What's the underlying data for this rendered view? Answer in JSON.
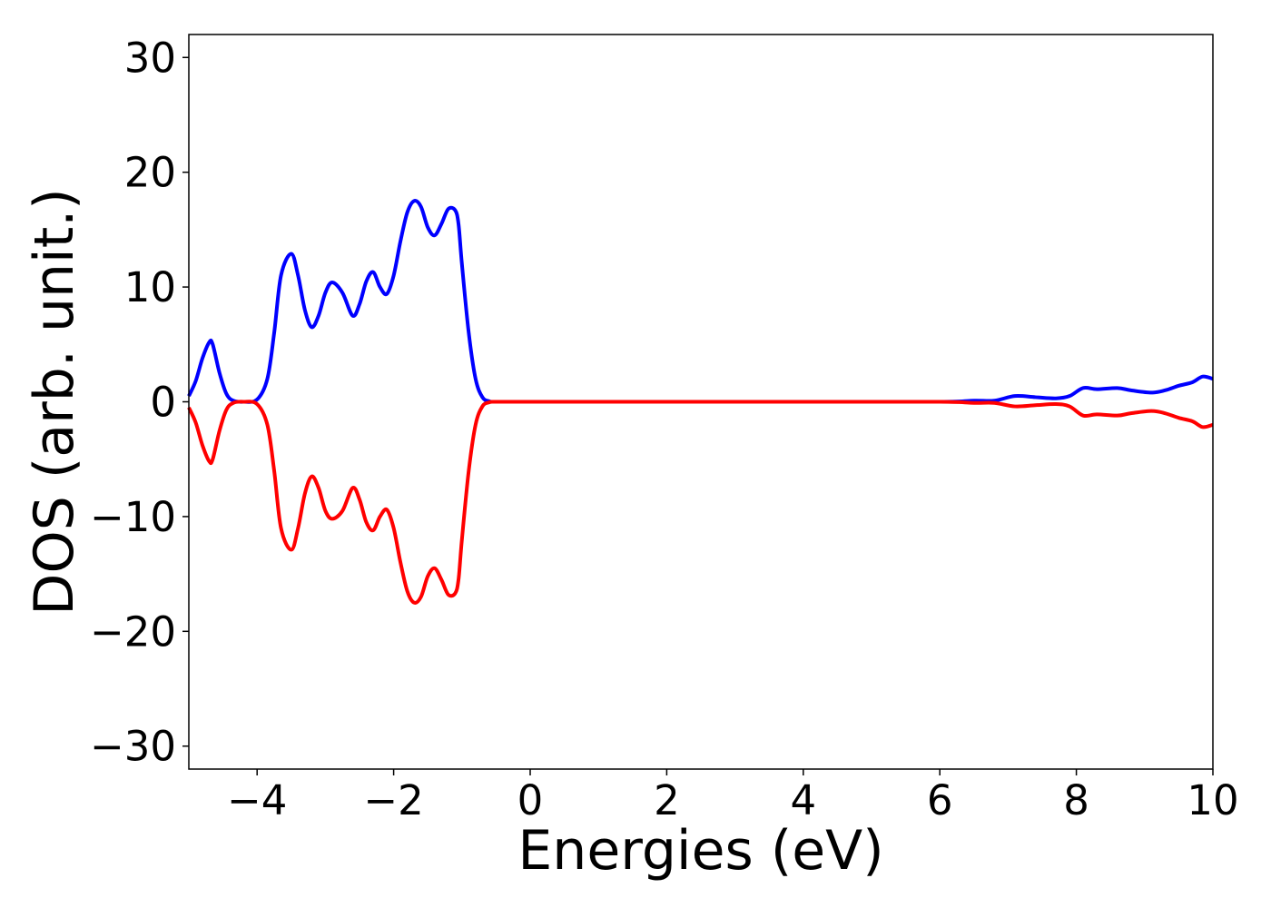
{
  "chart_data": {
    "type": "line",
    "title": "",
    "xlabel": "Energies (eV)",
    "ylabel": "DOS (arb. unit.)",
    "xlim": [
      -5,
      10
    ],
    "ylim": [
      -32,
      32
    ],
    "xticks": [
      -4,
      -2,
      0,
      2,
      4,
      6,
      8,
      10
    ],
    "yticks": [
      -30,
      -20,
      -10,
      0,
      10,
      20,
      30
    ],
    "xtick_labels": [
      "−4",
      "−2",
      "0",
      "2",
      "4",
      "6",
      "8",
      "10"
    ],
    "ytick_labels": [
      "−30",
      "−20",
      "−10",
      "0",
      "10",
      "20",
      "30"
    ],
    "grid": false,
    "legend": "none",
    "series": [
      {
        "color": "#0000ff",
        "x": [
          -5.0,
          -4.9,
          -4.8,
          -4.7,
          -4.65,
          -4.55,
          -4.45,
          -4.35,
          -4.2,
          -4.0,
          -3.85,
          -3.75,
          -3.65,
          -3.5,
          -3.4,
          -3.3,
          -3.2,
          -3.1,
          -3.0,
          -2.9,
          -2.75,
          -2.6,
          -2.5,
          -2.4,
          -2.3,
          -2.2,
          -2.1,
          -2.0,
          -1.9,
          -1.8,
          -1.7,
          -1.6,
          -1.5,
          -1.4,
          -1.3,
          -1.2,
          -1.1,
          -1.05,
          -1.0,
          -0.9,
          -0.8,
          -0.7,
          -0.6,
          -0.5,
          0.0,
          2.0,
          4.0,
          6.0,
          6.5,
          6.8,
          7.1,
          7.4,
          7.7,
          7.9,
          8.1,
          8.3,
          8.6,
          8.8,
          9.1,
          9.3,
          9.5,
          9.7,
          9.85,
          10.0
        ],
        "y": [
          0.5,
          1.8,
          3.8,
          5.2,
          5.0,
          2.5,
          0.7,
          0.1,
          0.0,
          0.2,
          2.0,
          6.0,
          11.0,
          12.9,
          11.0,
          8.0,
          6.5,
          7.5,
          9.5,
          10.4,
          9.5,
          7.5,
          8.5,
          10.5,
          11.3,
          10.0,
          9.4,
          11.0,
          14.0,
          16.5,
          17.5,
          17.0,
          15.2,
          14.5,
          15.5,
          16.8,
          16.7,
          15.5,
          12.0,
          6.0,
          2.0,
          0.4,
          0.05,
          0.0,
          0.0,
          0.0,
          0.0,
          0.0,
          0.1,
          0.1,
          0.5,
          0.4,
          0.3,
          0.5,
          1.2,
          1.1,
          1.2,
          1.0,
          0.8,
          1.0,
          1.4,
          1.7,
          2.2,
          2.0
        ]
      },
      {
        "color": "#ff0000",
        "x": [
          -5.0,
          -4.9,
          -4.8,
          -4.7,
          -4.65,
          -4.55,
          -4.45,
          -4.35,
          -4.2,
          -4.0,
          -3.85,
          -3.75,
          -3.65,
          -3.5,
          -3.4,
          -3.3,
          -3.2,
          -3.1,
          -3.0,
          -2.9,
          -2.75,
          -2.6,
          -2.5,
          -2.4,
          -2.3,
          -2.2,
          -2.1,
          -2.0,
          -1.9,
          -1.8,
          -1.7,
          -1.6,
          -1.5,
          -1.4,
          -1.3,
          -1.2,
          -1.1,
          -1.05,
          -1.0,
          -0.9,
          -0.8,
          -0.7,
          -0.6,
          -0.5,
          0.0,
          2.0,
          4.0,
          6.0,
          6.5,
          6.8,
          7.1,
          7.4,
          7.7,
          7.9,
          8.1,
          8.3,
          8.6,
          8.8,
          9.1,
          9.3,
          9.5,
          9.7,
          9.85,
          10.0
        ],
        "y": [
          -0.5,
          -1.8,
          -3.8,
          -5.2,
          -5.0,
          -2.5,
          -0.7,
          -0.1,
          0.0,
          -0.2,
          -2.0,
          -6.0,
          -11.0,
          -12.9,
          -11.0,
          -8.0,
          -6.5,
          -7.5,
          -9.5,
          -10.2,
          -9.5,
          -7.5,
          -8.5,
          -10.5,
          -11.2,
          -10.0,
          -9.4,
          -11.0,
          -14.0,
          -16.5,
          -17.5,
          -17.0,
          -15.2,
          -14.5,
          -15.5,
          -16.8,
          -16.7,
          -15.5,
          -12.0,
          -6.0,
          -2.0,
          -0.4,
          -0.05,
          0.0,
          0.0,
          0.0,
          0.0,
          0.0,
          -0.1,
          -0.1,
          -0.4,
          -0.3,
          -0.2,
          -0.4,
          -1.2,
          -1.1,
          -1.2,
          -1.0,
          -0.8,
          -1.0,
          -1.4,
          -1.7,
          -2.2,
          -2.0
        ]
      }
    ]
  }
}
